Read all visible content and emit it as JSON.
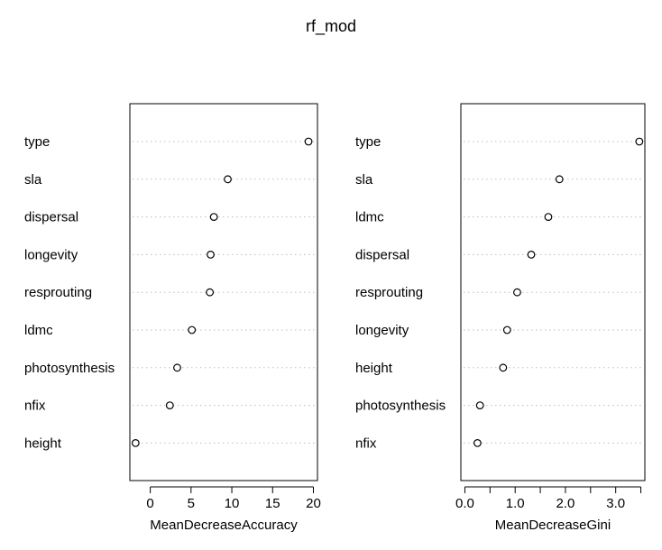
{
  "title": "rf_mod",
  "chart_data": [
    {
      "type": "scatter",
      "plot_style": "dotchart",
      "xlabel": "MeanDecreaseAccuracy",
      "xlim": [
        -2.5,
        20.5
      ],
      "xticks": [
        0,
        5,
        10,
        15,
        20
      ],
      "xtick_labels": [
        "0",
        "5",
        "10",
        "15",
        "20"
      ],
      "categories": [
        "type",
        "sla",
        "dispersal",
        "longevity",
        "resprouting",
        "ldmc",
        "photosynthesis",
        "nfix",
        "height"
      ],
      "values": [
        19.4,
        9.5,
        7.8,
        7.4,
        7.3,
        5.1,
        3.3,
        2.4,
        -1.8
      ]
    },
    {
      "type": "scatter",
      "plot_style": "dotchart",
      "xlabel": "MeanDecreaseGini",
      "xlim": [
        -0.08,
        3.58
      ],
      "xticks": [
        0.0,
        0.5,
        1.0,
        1.5,
        2.0,
        2.5,
        3.0,
        3.5
      ],
      "xtick_labels": [
        "0.0",
        "",
        "1.0",
        "",
        "2.0",
        "",
        "3.0",
        ""
      ],
      "categories": [
        "type",
        "sla",
        "ldmc",
        "dispersal",
        "resprouting",
        "longevity",
        "height",
        "photosynthesis",
        "nfix"
      ],
      "values": [
        3.47,
        1.88,
        1.66,
        1.32,
        1.04,
        0.84,
        0.76,
        0.3,
        0.25
      ]
    }
  ]
}
